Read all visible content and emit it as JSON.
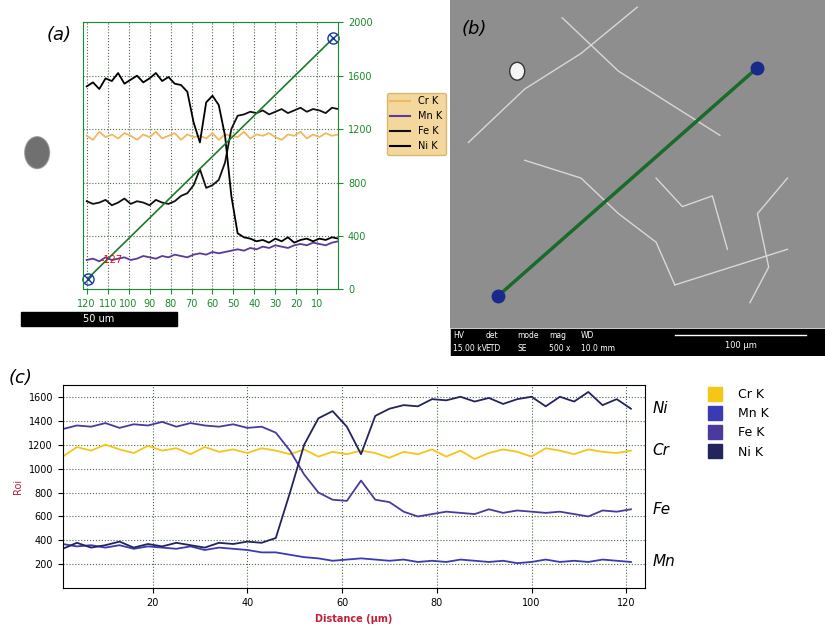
{
  "chart_data": [
    {
      "panel": "(a)",
      "type": "line",
      "grid": true,
      "legend": "center left",
      "line_style": "solid",
      "xlim": [
        122,
        0
      ],
      "xticks": [
        120,
        110,
        100,
        90,
        80,
        70,
        60,
        50,
        40,
        30,
        20,
        10
      ],
      "ylim": [
        0,
        2000
      ],
      "yticks": [
        0,
        400,
        800,
        1200,
        1600,
        2000
      ],
      "annotations": [
        "-127"
      ],
      "scale_bar": "50 um",
      "x": [
        120,
        117,
        114,
        111,
        108,
        105,
        102,
        99,
        96,
        93,
        90,
        87,
        84,
        81,
        78,
        75,
        72,
        69,
        66,
        63,
        60,
        57,
        54,
        51,
        48,
        45,
        42,
        39,
        36,
        33,
        30,
        27,
        24,
        21,
        18,
        15,
        12,
        9,
        6,
        3,
        0
      ],
      "series": [
        {
          "name": "Cr K",
          "color": "#f0b860",
          "values": [
            1150,
            1120,
            1180,
            1140,
            1160,
            1130,
            1170,
            1150,
            1120,
            1160,
            1140,
            1180,
            1130,
            1150,
            1170,
            1120,
            1160,
            1140,
            1150,
            1130,
            1170,
            1120,
            1160,
            1150,
            1140,
            1180,
            1130,
            1160,
            1150,
            1170,
            1140,
            1120,
            1160,
            1150,
            1180,
            1130,
            1160,
            1140,
            1170,
            1150,
            1160
          ]
        },
        {
          "name": "Mn K",
          "color": "#5a3a9a",
          "values": [
            220,
            230,
            210,
            240,
            220,
            230,
            240,
            220,
            230,
            250,
            240,
            230,
            250,
            240,
            260,
            250,
            240,
            260,
            270,
            260,
            280,
            270,
            280,
            290,
            300,
            290,
            310,
            300,
            320,
            310,
            330,
            320,
            310,
            330,
            340,
            330,
            350,
            340,
            330,
            350,
            360
          ]
        },
        {
          "name": "Fe K",
          "color": "#111111",
          "values": [
            660,
            640,
            650,
            670,
            630,
            650,
            680,
            640,
            660,
            650,
            630,
            670,
            650,
            640,
            660,
            700,
            720,
            780,
            900,
            760,
            780,
            820,
            950,
            1200,
            1300,
            1310,
            1330,
            1320,
            1340,
            1310,
            1330,
            1350,
            1320,
            1340,
            1360,
            1330,
            1350,
            1340,
            1320,
            1360,
            1350
          ]
        },
        {
          "name": "Ni K",
          "color": "#000000",
          "values": [
            1520,
            1550,
            1500,
            1580,
            1560,
            1620,
            1540,
            1570,
            1600,
            1550,
            1580,
            1620,
            1560,
            1590,
            1540,
            1530,
            1480,
            1250,
            1100,
            1400,
            1450,
            1380,
            1150,
            700,
            420,
            390,
            380,
            360,
            370,
            350,
            380,
            360,
            390,
            350,
            370,
            380,
            360,
            380,
            370,
            390,
            380
          ]
        }
      ]
    },
    {
      "panel": "(c)",
      "type": "line",
      "grid": true,
      "legend": "upper left",
      "line_style": "solid",
      "x_label": "Distance (µm)",
      "y_label": "Roi",
      "xlim": [
        1,
        124
      ],
      "xticks": [
        20,
        40,
        60,
        80,
        100,
        120
      ],
      "ylim": [
        0,
        1700
      ],
      "yticks": [
        200,
        400,
        600,
        800,
        1000,
        1200,
        1400,
        1600
      ],
      "x": [
        1,
        4,
        7,
        10,
        13,
        16,
        19,
        22,
        25,
        28,
        31,
        34,
        37,
        40,
        43,
        46,
        49,
        52,
        55,
        58,
        61,
        64,
        67,
        70,
        73,
        76,
        79,
        82,
        85,
        88,
        91,
        94,
        97,
        100,
        103,
        106,
        109,
        112,
        115,
        118,
        121
      ],
      "series": [
        {
          "name": "Cr K",
          "annotation": "Cr",
          "color": "#f5c518",
          "values": [
            1100,
            1180,
            1150,
            1200,
            1160,
            1130,
            1190,
            1150,
            1170,
            1120,
            1180,
            1140,
            1160,
            1130,
            1170,
            1150,
            1120,
            1160,
            1100,
            1140,
            1120,
            1150,
            1130,
            1090,
            1140,
            1120,
            1160,
            1100,
            1150,
            1080,
            1130,
            1160,
            1140,
            1100,
            1170,
            1150,
            1120,
            1160,
            1140,
            1130,
            1150
          ]
        },
        {
          "name": "Mn K",
          "annotation": "Mn",
          "color": "#3a3ab5",
          "values": [
            370,
            350,
            360,
            340,
            360,
            330,
            350,
            340,
            330,
            350,
            320,
            340,
            330,
            320,
            300,
            300,
            280,
            260,
            250,
            230,
            240,
            250,
            240,
            230,
            240,
            220,
            230,
            220,
            240,
            230,
            220,
            230,
            210,
            220,
            240,
            220,
            230,
            220,
            240,
            230,
            220
          ]
        },
        {
          "name": "Fe K",
          "annotation": "Fe",
          "color": "#4a3a9c",
          "values": [
            1330,
            1360,
            1350,
            1380,
            1340,
            1370,
            1360,
            1390,
            1350,
            1380,
            1360,
            1350,
            1370,
            1340,
            1350,
            1300,
            1150,
            950,
            800,
            740,
            730,
            900,
            740,
            720,
            640,
            600,
            620,
            640,
            630,
            620,
            660,
            630,
            650,
            640,
            630,
            640,
            620,
            600,
            650,
            640,
            660
          ]
        },
        {
          "name": "Ni K",
          "annotation": "Ni",
          "color": "#23235e",
          "values": [
            330,
            380,
            340,
            360,
            390,
            340,
            370,
            350,
            380,
            360,
            340,
            380,
            370,
            390,
            380,
            420,
            800,
            1200,
            1420,
            1480,
            1350,
            1120,
            1440,
            1500,
            1530,
            1520,
            1580,
            1570,
            1600,
            1560,
            1590,
            1540,
            1580,
            1600,
            1520,
            1600,
            1560,
            1640,
            1530,
            1580,
            1500
          ]
        }
      ]
    }
  ],
  "image": {
    "panel": "(b)",
    "type": "SEM image",
    "info_bar": [
      {
        "name": "HV",
        "value": "15.00 kV"
      },
      {
        "name": "det",
        "value": "ETD"
      },
      {
        "name": "mode",
        "value": "SE"
      },
      {
        "name": "mag",
        "value": "500 x"
      },
      {
        "name": "WD",
        "value": "10.0 mm"
      }
    ],
    "scale_bar": "100 µm"
  }
}
